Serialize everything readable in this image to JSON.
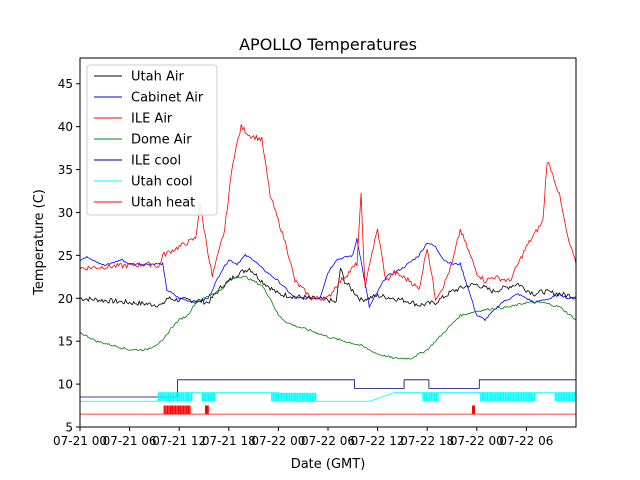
{
  "chart_data": {
    "type": "line",
    "title": "APOLLO Temperatures",
    "xlabel": "Date (GMT)",
    "ylabel": "Temperature (C)",
    "xlim": [
      0,
      60
    ],
    "ylim": [
      5,
      48
    ],
    "x_unit": "hours since 07-21 00:00 GMT (approx.)",
    "yticks": [
      5,
      10,
      15,
      20,
      25,
      30,
      35,
      40,
      45
    ],
    "xticks": [
      {
        "x": 0,
        "label": "07-21 00"
      },
      {
        "x": 6,
        "label": "07-21 06"
      },
      {
        "x": 12,
        "label": "07-21 12"
      },
      {
        "x": 18,
        "label": "07-21 18"
      },
      {
        "x": 24,
        "label": "07-22 00"
      },
      {
        "x": 30,
        "label": "07-22 06"
      },
      {
        "x": 36,
        "label": "07-22 12"
      },
      {
        "x": 42,
        "label": "07-22 18"
      },
      {
        "x": 48,
        "label": "07-22 00"
      },
      {
        "x": 54,
        "label": "07-22 06"
      }
    ],
    "legend_position": "top-left",
    "series": [
      {
        "name": "Utah Air",
        "color": "#000000",
        "type": "line",
        "x": [
          0,
          6,
          10,
          10.5,
          12,
          14,
          15.5,
          17,
          19,
          20.5,
          22,
          24,
          26,
          30,
          31,
          31.5,
          32,
          34,
          36,
          38,
          40,
          41,
          43,
          45,
          47,
          48,
          50,
          52,
          53,
          54,
          55,
          56,
          58,
          60
        ],
        "y": [
          20,
          19.5,
          19.2,
          20,
          19.8,
          19.8,
          19.5,
          21.2,
          22.8,
          23.5,
          22,
          20.5,
          20.2,
          19.8,
          19.5,
          23.5,
          22,
          19.8,
          20.3,
          20,
          19.6,
          19.2,
          19.5,
          20.8,
          21.5,
          21.6,
          20.8,
          21.4,
          21.7,
          21,
          20.5,
          20.8,
          20.5,
          20.2
        ]
      },
      {
        "name": "Cabinet Air",
        "color": "#0000ff",
        "type": "line",
        "x": [
          0,
          1,
          3,
          5,
          6,
          9,
          10,
          10.5,
          12,
          14,
          15.5,
          17,
          18,
          19,
          20,
          21,
          22,
          24,
          26,
          29,
          30,
          31,
          33,
          33.5,
          35,
          37,
          39,
          41,
          42,
          43,
          44,
          45,
          46,
          48,
          49,
          50,
          51,
          52,
          53,
          54,
          55,
          56,
          57,
          58,
          59,
          60
        ],
        "y": [
          24.5,
          24.8,
          23.8,
          24.5,
          24,
          24,
          24,
          21,
          20,
          19.5,
          20,
          23,
          24.5,
          24,
          25,
          24.5,
          23.5,
          22,
          20,
          20,
          23,
          24.5,
          25,
          27,
          19,
          22.5,
          23.5,
          25,
          26.5,
          26,
          24.5,
          24,
          24,
          18,
          17.5,
          18.5,
          19.5,
          20,
          20.5,
          20,
          19.5,
          19.8,
          20,
          20.5,
          20,
          20
        ]
      },
      {
        "name": "ILE Air",
        "color": "#ff0000",
        "type": "line",
        "x": [
          0,
          9,
          9.5,
          10,
          12,
          14,
          14.5,
          16,
          17.5,
          18.5,
          19.5,
          20.5,
          22,
          23,
          24,
          25,
          26,
          27,
          28,
          30,
          31,
          32,
          33.5,
          34,
          34.5,
          35,
          36,
          37,
          38,
          40,
          41,
          42,
          43,
          44,
          45,
          46,
          48,
          49,
          50,
          52,
          54,
          56,
          56.5,
          57,
          58,
          59,
          60
        ],
        "y": [
          23.5,
          24,
          23.5,
          25,
          26,
          27,
          31,
          22.5,
          28,
          36,
          40,
          39,
          38.5,
          32,
          29,
          26,
          22,
          21,
          20,
          20,
          21.5,
          22.5,
          24,
          32,
          21,
          24,
          28,
          22,
          23,
          22,
          21,
          26,
          20,
          21.5,
          24,
          28,
          23,
          22,
          22.5,
          22,
          26,
          29,
          36,
          35,
          32,
          27,
          24
        ]
      },
      {
        "name": "Dome Air",
        "color": "#008000",
        "type": "line",
        "x": [
          0,
          2,
          4,
          6,
          8,
          10,
          11,
          12,
          13,
          14,
          15,
          16,
          17,
          18,
          19,
          20,
          21,
          22,
          23,
          24,
          25,
          26,
          27,
          28,
          30,
          32,
          34,
          36,
          38,
          40,
          42,
          44,
          46,
          48,
          50,
          52,
          54,
          56,
          58,
          60
        ],
        "y": [
          16,
          15,
          14.5,
          14,
          14,
          15,
          16.5,
          17.5,
          18,
          19.5,
          20,
          20.5,
          21,
          22,
          22.5,
          22.5,
          22,
          21.5,
          20,
          18,
          17.2,
          16.8,
          16.5,
          16.2,
          15.5,
          15,
          14.5,
          13.5,
          13,
          13,
          14,
          16,
          18,
          18.5,
          18.8,
          19,
          19.5,
          19.5,
          19,
          17.5
        ]
      },
      {
        "name": "ILE cool",
        "color": "#000080",
        "type": "step",
        "x": [
          0,
          11.8,
          11.8,
          33.2,
          33.2,
          39.2,
          39.2,
          42.2,
          42.2,
          48.3,
          48.3,
          60
        ],
        "y": [
          8.5,
          8.5,
          10.5,
          10.5,
          9.5,
          9.5,
          10.5,
          10.5,
          9.5,
          9.5,
          10.5,
          10.5
        ]
      },
      {
        "name": "Utah cool",
        "color": "#00ffff",
        "type": "step",
        "x": [
          0,
          9.5,
          9.5,
          22,
          24,
          26,
          35,
          38,
          48.3,
          60
        ],
        "y": [
          8,
          8,
          9,
          9,
          9,
          8,
          8,
          9,
          9,
          9
        ]
      },
      {
        "name": "Utah heat",
        "color": "#ff0000",
        "type": "step",
        "x": [
          0,
          60
        ],
        "y": [
          6.5,
          6.5
        ]
      }
    ],
    "activity_bursts": [
      {
        "series": "Utah cool",
        "x0": 9.5,
        "x1": 13.5,
        "low": 8,
        "high": 9
      },
      {
        "series": "Utah cool",
        "x0": 14.8,
        "x1": 16.3,
        "low": 8,
        "high": 9
      },
      {
        "series": "Utah cool",
        "x0": 23.2,
        "x1": 28.5,
        "low": 8,
        "high": 9
      },
      {
        "series": "Utah cool",
        "x0": 41.5,
        "x1": 43.3,
        "low": 8,
        "high": 9
      },
      {
        "series": "Utah cool",
        "x0": 48.5,
        "x1": 55,
        "low": 8,
        "high": 9
      },
      {
        "series": "Utah cool",
        "x0": 57.5,
        "x1": 60,
        "low": 8,
        "high": 9
      },
      {
        "series": "Utah heat",
        "x0": 10.2,
        "x1": 13.3,
        "low": 6.5,
        "high": 7.5
      },
      {
        "series": "Utah heat",
        "x0": 15.2,
        "x1": 15.5,
        "low": 6.5,
        "high": 7.5
      },
      {
        "series": "Utah heat",
        "x0": 47.5,
        "x1": 47.7,
        "low": 6.5,
        "high": 7.5
      }
    ]
  }
}
